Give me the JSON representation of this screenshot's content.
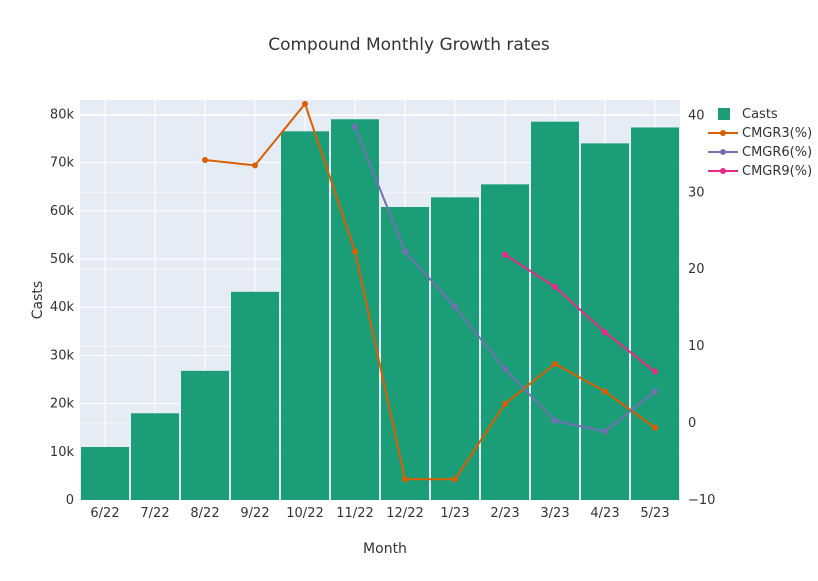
{
  "chart_data": {
    "type": "bar",
    "title": "Compound Monthly Growth rates",
    "xlabel": "Month",
    "ylabel": "Casts",
    "y2label": "",
    "categories": [
      "6/22",
      "7/22",
      "8/22",
      "9/22",
      "10/22",
      "11/22",
      "12/22",
      "1/23",
      "2/23",
      "3/23",
      "4/23",
      "5/23"
    ],
    "ylim": [
      0,
      83000
    ],
    "y2lim": [
      -10,
      42
    ],
    "yticks": [
      "0",
      "10k",
      "20k",
      "30k",
      "40k",
      "50k",
      "60k",
      "70k",
      "80k"
    ],
    "y2ticks": [
      "−10",
      "0",
      "10",
      "20",
      "30",
      "40"
    ],
    "legend_position": "top-right",
    "grid": true,
    "series": [
      {
        "name": "Casts",
        "kind": "bar",
        "axis": "y",
        "color": "#1b9e77",
        "values": [
          11000,
          18000,
          26800,
          43200,
          76500,
          79000,
          60800,
          62800,
          65500,
          78500,
          74000,
          77300
        ]
      },
      {
        "name": "CMGR3(%)",
        "kind": "line",
        "axis": "y2",
        "color": "#d95f02",
        "values": [
          null,
          null,
          34.2,
          33.5,
          41.5,
          22.3,
          -7.3,
          -7.3,
          2.5,
          7.7,
          4.1,
          -0.6
        ]
      },
      {
        "name": "CMGR6(%)",
        "kind": "line",
        "axis": "y2",
        "color": "#7570b3",
        "values": [
          null,
          null,
          null,
          null,
          null,
          38.5,
          22.3,
          15.1,
          7.0,
          0.3,
          -1.1,
          4.1
        ]
      },
      {
        "name": "CMGR9(%)",
        "kind": "line",
        "axis": "y2",
        "color": "#e7298a",
        "values": [
          null,
          null,
          null,
          null,
          null,
          null,
          null,
          null,
          21.9,
          17.7,
          11.8,
          6.7
        ]
      }
    ]
  }
}
